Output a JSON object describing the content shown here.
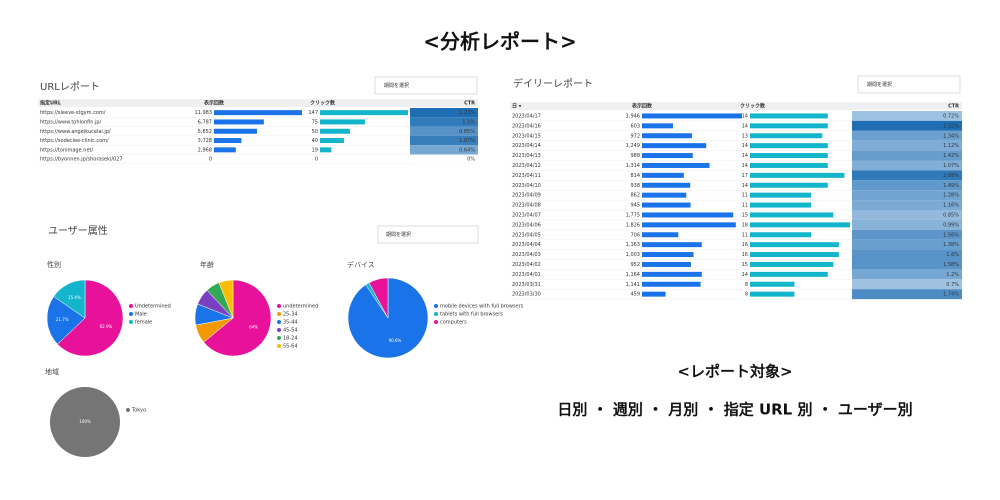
{
  "header": {
    "title": "<分析レポート>"
  },
  "url_report": {
    "title": "URLレポート",
    "period_select": "期間を選択",
    "columns": [
      "指定URL",
      "表示回数",
      "クリック数",
      "CTR"
    ],
    "rows": [
      {
        "key": "https://sleeve-stgym.com/",
        "impressions": {
          "value": 11983,
          "label": "11,983"
        },
        "clicks": 147,
        "ctr": {
          "value": 1.23,
          "label": "1.23%"
        }
      },
      {
        "key": "https://www.tohlonfin.jp/",
        "impressions": {
          "value": 6787,
          "label": "6,787"
        },
        "clicks": 75,
        "ctr": {
          "value": 1.1,
          "label": "1.1%"
        }
      },
      {
        "key": "https://www.angelkucelai.jp/",
        "impressions": {
          "value": 5852,
          "label": "5,852"
        },
        "clicks": 50,
        "ctr": {
          "value": 0.85,
          "label": "0.85%"
        }
      },
      {
        "key": "https://sodeclee-clinic.com/",
        "impressions": {
          "value": 3728,
          "label": "3,728"
        },
        "clicks": 40,
        "ctr": {
          "value": 1.07,
          "label": "1.07%"
        }
      },
      {
        "key": "https://tonimage.net/",
        "impressions": {
          "value": 2968,
          "label": "2,968"
        },
        "clicks": 19,
        "ctr": {
          "value": 0.64,
          "label": "0.64%"
        }
      },
      {
        "key": "https://byonnen.jp/shoroseki/027",
        "impressions": {
          "value": 0,
          "label": "0"
        },
        "clicks": 0,
        "ctr": {
          "value": 0,
          "label": "0%"
        }
      }
    ]
  },
  "daily_report": {
    "title": "デイリーレポート",
    "period_select": "期間を選択",
    "columns": [
      "日 ▾",
      "表示回数",
      "クリック数",
      "CTR"
    ],
    "rows": [
      {
        "key": "2023/04/17",
        "impressions": {
          "value": 1946,
          "label": "1,946"
        },
        "clicks": 14,
        "ctr": {
          "value": 0.72,
          "label": "0.72%"
        }
      },
      {
        "key": "2023/04/16",
        "impressions": {
          "value": 603,
          "label": "603"
        },
        "clicks": 14,
        "ctr": {
          "value": 2.32,
          "label": "2.32%"
        }
      },
      {
        "key": "2023/04/15",
        "impressions": {
          "value": 972,
          "label": "972"
        },
        "clicks": 13,
        "ctr": {
          "value": 1.34,
          "label": "1.34%"
        }
      },
      {
        "key": "2023/04/14",
        "impressions": {
          "value": 1249,
          "label": "1,249"
        },
        "clicks": 14,
        "ctr": {
          "value": 1.12,
          "label": "1.12%"
        }
      },
      {
        "key": "2023/04/13",
        "impressions": {
          "value": 988,
          "label": "988"
        },
        "clicks": 14,
        "ctr": {
          "value": 1.42,
          "label": "1.42%"
        }
      },
      {
        "key": "2023/04/12",
        "impressions": {
          "value": 1314,
          "label": "1,314"
        },
        "clicks": 14,
        "ctr": {
          "value": 1.07,
          "label": "1.07%"
        }
      },
      {
        "key": "2023/04/11",
        "impressions": {
          "value": 814,
          "label": "814"
        },
        "clicks": 17,
        "ctr": {
          "value": 2.09,
          "label": "2.09%"
        }
      },
      {
        "key": "2023/04/10",
        "impressions": {
          "value": 938,
          "label": "938"
        },
        "clicks": 14,
        "ctr": {
          "value": 1.49,
          "label": "1.49%"
        }
      },
      {
        "key": "2023/04/09",
        "impressions": {
          "value": 862,
          "label": "862"
        },
        "clicks": 11,
        "ctr": {
          "value": 1.28,
          "label": "1.28%"
        }
      },
      {
        "key": "2023/04/08",
        "impressions": {
          "value": 945,
          "label": "945"
        },
        "clicks": 11,
        "ctr": {
          "value": 1.16,
          "label": "1.16%"
        }
      },
      {
        "key": "2023/04/07",
        "impressions": {
          "value": 1775,
          "label": "1,775"
        },
        "clicks": 15,
        "ctr": {
          "value": 0.85,
          "label": "0.85%"
        }
      },
      {
        "key": "2023/04/06",
        "impressions": {
          "value": 1826,
          "label": "1,826"
        },
        "clicks": 18,
        "ctr": {
          "value": 0.99,
          "label": "0.99%"
        }
      },
      {
        "key": "2023/04/05",
        "impressions": {
          "value": 706,
          "label": "706"
        },
        "clicks": 11,
        "ctr": {
          "value": 1.56,
          "label": "1.56%"
        }
      },
      {
        "key": "2023/04/04",
        "impressions": {
          "value": 1163,
          "label": "1,163"
        },
        "clicks": 16,
        "ctr": {
          "value": 1.38,
          "label": "1.38%"
        }
      },
      {
        "key": "2023/04/03",
        "impressions": {
          "value": 1003,
          "label": "1,003"
        },
        "clicks": 16,
        "ctr": {
          "value": 1.6,
          "label": "1.6%"
        }
      },
      {
        "key": "2023/04/02",
        "impressions": {
          "value": 952,
          "label": "952"
        },
        "clicks": 15,
        "ctr": {
          "value": 1.58,
          "label": "1.58%"
        }
      },
      {
        "key": "2023/04/01",
        "impressions": {
          "value": 1164,
          "label": "1,164"
        },
        "clicks": 14,
        "ctr": {
          "value": 1.2,
          "label": "1.2%"
        }
      },
      {
        "key": "2023/03/31",
        "impressions": {
          "value": 1141,
          "label": "1,141"
        },
        "clicks": 8,
        "ctr": {
          "value": 0.7,
          "label": "0.7%"
        }
      },
      {
        "key": "2023/03/30",
        "impressions": {
          "value": 459,
          "label": "459"
        },
        "clicks": 8,
        "ctr": {
          "value": 1.74,
          "label": "1.74%"
        }
      }
    ]
  },
  "user_attributes": {
    "title": "ユーザー属性",
    "period_select": "期間を選択",
    "charts": [
      {
        "title": "性別",
        "slices": [
          {
            "name": "Undetermined",
            "color": "#e8129a",
            "value": 62.9,
            "label": "62.9%"
          },
          {
            "name": "Male",
            "color": "#1a73e8",
            "value": 21.7,
            "label": "21.7%"
          },
          {
            "name": "female",
            "color": "#12b5cb",
            "value": 15.4,
            "label": "15.4%"
          }
        ]
      },
      {
        "title": "年齢",
        "slices": [
          {
            "name": "undetermined",
            "color": "#e8129a",
            "value": 64,
            "label": "64%"
          },
          {
            "name": "25-34",
            "color": "#f29900",
            "value": 8,
            "label": "8%"
          },
          {
            "name": "35-44",
            "color": "#1a73e8",
            "value": 9,
            "label": "9%"
          },
          {
            "name": "45-54",
            "color": "#7b3fc4",
            "value": 7,
            "label": "7%"
          },
          {
            "name": "18-24",
            "color": "#34a853",
            "value": 6,
            "label": "6%"
          },
          {
            "name": "55-64",
            "color": "#fbbc04",
            "value": 6,
            "label": "6%"
          }
        ]
      },
      {
        "title": "デバイス",
        "slices": [
          {
            "name": "mobile devices with full browsers",
            "color": "#1a73e8",
            "value": 90.6,
            "label": "90.6%"
          },
          {
            "name": "tablets with full browsers",
            "color": "#12b5cb",
            "value": 1.5,
            "label": "1.5%"
          },
          {
            "name": "computers",
            "color": "#e8129a",
            "value": 7.9,
            "label": "7.9%"
          }
        ]
      },
      {
        "title": "地域",
        "slices": [
          {
            "name": "Tokyo",
            "color": "#757575",
            "value": 100,
            "label": "100%"
          }
        ]
      }
    ]
  },
  "report_targets": {
    "title": "<レポート対象>",
    "items": "日別 ・ 週別 ・ 月別 ・ 指定 URL 別 ・ ユーザー別"
  }
}
